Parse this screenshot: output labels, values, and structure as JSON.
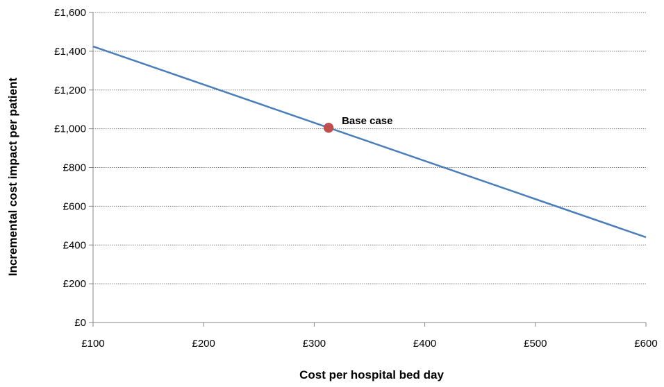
{
  "chart_data": {
    "type": "line",
    "title": "",
    "xlabel": "Cost per hospital bed day",
    "ylabel": "Incremental cost impact per patient",
    "xlim": [
      100,
      600
    ],
    "ylim": [
      0,
      1600
    ],
    "x_ticks": [
      100,
      200,
      300,
      400,
      500,
      600
    ],
    "y_ticks": [
      0,
      200,
      400,
      600,
      800,
      1000,
      1200,
      1400,
      1600
    ],
    "x_tick_labels": [
      "£100",
      "£200",
      "£300",
      "£400",
      "£500",
      "£600"
    ],
    "y_tick_labels": [
      "£0",
      "£200",
      "£400",
      "£600",
      "£800",
      "£1,000",
      "£1,200",
      "£1,400",
      "£1,600"
    ],
    "grid": "horizontal dotted",
    "series": [
      {
        "x": [
          100,
          600
        ],
        "y": [
          1425,
          440
        ],
        "color": "#4a7ebb"
      }
    ],
    "annotations": [
      {
        "label": "Base case",
        "x": 313,
        "y": 1005,
        "color": "#c0504d"
      }
    ]
  }
}
